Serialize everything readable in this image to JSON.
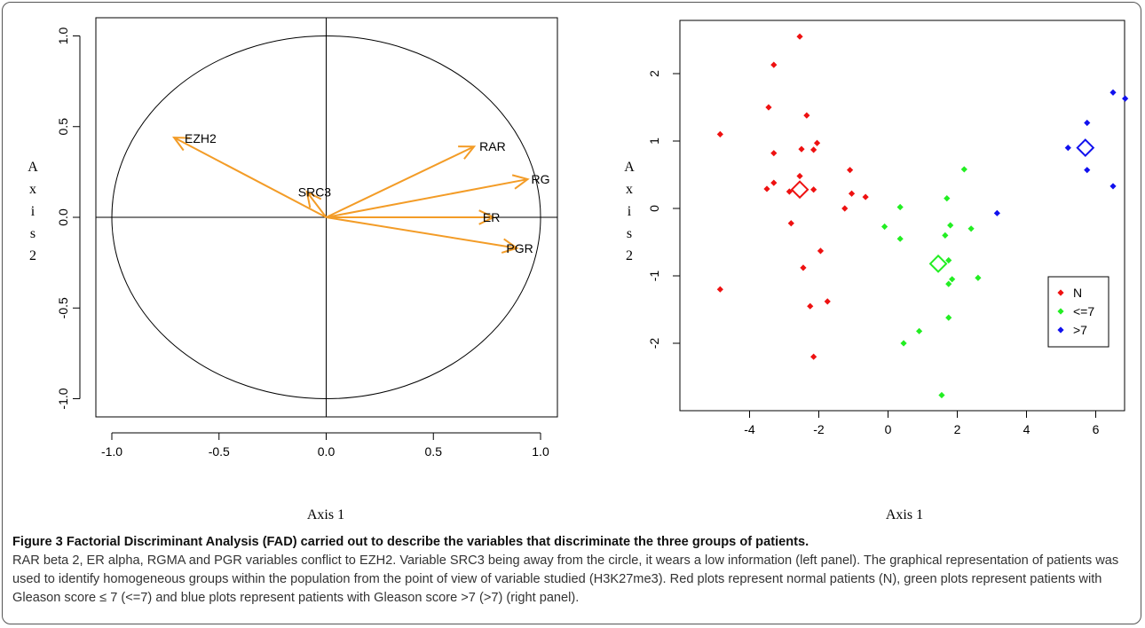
{
  "caption": {
    "title": "Figure 3 Factorial Discriminant Analysis (FAD) carried out to describe the variables that discriminate the three groups of patients.",
    "body": "RAR beta 2, ER alpha, RGMA and PGR variables conflict to EZH2. Variable SRC3 being away from the circle, it wears a low information (left panel). The graphical representation of patients was used to identify homogeneous groups within the population from the point of view of variable studied (H3K27me3). Red plots represent normal patients (N), green plots represent patients with Gleason score ≤ 7 (<=7) and blue plots represent patients with Gleason score >7 (>7) (right panel)."
  },
  "colors": {
    "arrow": "#f39c27",
    "N": "#ee1111",
    "le7": "#22ee22",
    "gt7": "#1111ee"
  },
  "chart_data": [
    {
      "type": "scatter",
      "name": "correlation-circle",
      "xlabel": "Axis 1",
      "ylabel": "A x i s 2",
      "xlim": [
        -1.0,
        1.0
      ],
      "ylim": [
        -1.0,
        1.0
      ],
      "xticks": [
        "-1.0",
        "-0.5",
        "0.0",
        "0.5",
        "1.0"
      ],
      "yticks": [
        "-1.0",
        "-0.5",
        "0.0",
        "0.5",
        "1.0"
      ],
      "vectors": [
        {
          "label": "EZH2",
          "x": -0.71,
          "y": 0.44
        },
        {
          "label": "RAR",
          "x": 0.69,
          "y": 0.39
        },
        {
          "label": "RG",
          "x": 0.94,
          "y": 0.21
        },
        {
          "label": "SRC3",
          "x": -0.09,
          "y": 0.14
        },
        {
          "label": "ER",
          "x": 0.78,
          "y": 0.0
        },
        {
          "label": "PGR",
          "x": 0.89,
          "y": -0.17
        }
      ]
    },
    {
      "type": "scatter",
      "name": "patients-plot",
      "xlabel": "Axis 1",
      "ylabel": "A x i s 2",
      "xlim": [
        -5.2,
        7.2
      ],
      "ylim": [
        -3.0,
        2.7
      ],
      "xticks": [
        "-4",
        "-2",
        "0",
        "2",
        "4",
        "6"
      ],
      "yticks": [
        "-2",
        "-1",
        "0",
        "1",
        "2"
      ],
      "legend": {
        "position": "bottom-right",
        "entries": [
          "N",
          "<=7",
          ">7"
        ]
      },
      "series": [
        {
          "name": "N",
          "centroid": [
            -2.55,
            0.28
          ],
          "points": [
            [
              -2.55,
              2.55
            ],
            [
              -3.3,
              2.13
            ],
            [
              -3.45,
              1.5
            ],
            [
              -2.35,
              1.38
            ],
            [
              -4.85,
              1.1
            ],
            [
              -2.05,
              0.97
            ],
            [
              -2.5,
              0.88
            ],
            [
              -2.15,
              0.87
            ],
            [
              -3.3,
              0.82
            ],
            [
              -1.1,
              0.57
            ],
            [
              -2.55,
              0.48
            ],
            [
              -3.3,
              0.38
            ],
            [
              -3.5,
              0.29
            ],
            [
              -2.15,
              0.28
            ],
            [
              -2.85,
              0.25
            ],
            [
              -1.05,
              0.22
            ],
            [
              -0.65,
              0.17
            ],
            [
              -1.25,
              0.0
            ],
            [
              -2.8,
              -0.22
            ],
            [
              -1.95,
              -0.63
            ],
            [
              -2.45,
              -0.88
            ],
            [
              -4.85,
              -1.2
            ],
            [
              -1.75,
              -1.38
            ],
            [
              -2.25,
              -1.45
            ],
            [
              -2.15,
              -2.2
            ]
          ]
        },
        {
          "name": "<=7",
          "centroid": [
            1.45,
            -0.82
          ],
          "points": [
            [
              2.2,
              0.58
            ],
            [
              1.7,
              0.15
            ],
            [
              0.35,
              0.02
            ],
            [
              1.8,
              -0.25
            ],
            [
              -0.1,
              -0.27
            ],
            [
              2.4,
              -0.3
            ],
            [
              1.65,
              -0.4
            ],
            [
              0.35,
              -0.45
            ],
            [
              1.75,
              -0.77
            ],
            [
              1.85,
              -1.05
            ],
            [
              2.6,
              -1.03
            ],
            [
              1.75,
              -1.12
            ],
            [
              1.75,
              -1.62
            ],
            [
              0.9,
              -1.82
            ],
            [
              0.45,
              -2.0
            ],
            [
              1.55,
              -2.77
            ]
          ]
        },
        {
          "name": ">7",
          "centroid": [
            5.7,
            0.9
          ],
          "points": [
            [
              6.5,
              1.72
            ],
            [
              6.85,
              1.63
            ],
            [
              5.75,
              1.27
            ],
            [
              5.2,
              0.9
            ],
            [
              5.75,
              0.57
            ],
            [
              6.5,
              0.33
            ],
            [
              3.15,
              -0.07
            ]
          ]
        }
      ]
    }
  ]
}
